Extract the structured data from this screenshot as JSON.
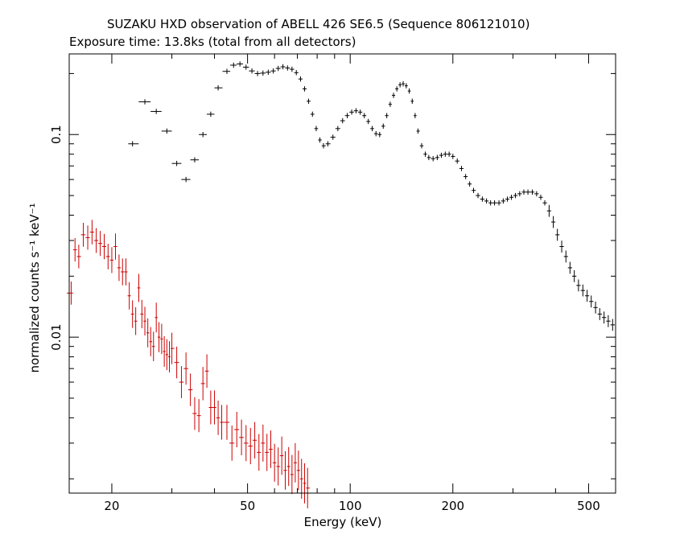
{
  "title": "SUZAKU HXD observation of ABELL 426 SE6.5 (Sequence 806121010)",
  "subtitle": "Exposure time: 13.8ks (total from all detectors)",
  "chart_data": {
    "type": "scatter",
    "title": "SUZAKU HXD observation of ABELL 426 SE6.5 (Sequence 806121010)",
    "subtitle": "Exposure time: 13.8ks (total from all detectors)",
    "xlabel": "Energy (keV)",
    "ylabel": "normalized counts s⁻¹ keV⁻¹",
    "xscale": "log",
    "yscale": "log",
    "xlim": [
      15,
      600
    ],
    "ylim": [
      0.0017,
      0.25
    ],
    "x_ticks": [
      20,
      50,
      100,
      200,
      500
    ],
    "x_tick_labels": [
      "20",
      "50",
      "100",
      "200",
      "500"
    ],
    "y_ticks": [
      0.01,
      0.1
    ],
    "y_tick_labels": [
      "0.01",
      "0.1"
    ],
    "legend": "none",
    "series": [
      {
        "color": "#000000",
        "points": [
          [
            23.0,
            0.09
          ],
          [
            25.0,
            0.145
          ],
          [
            27.0,
            0.13
          ],
          [
            29.0,
            0.104
          ],
          [
            31.0,
            0.072
          ],
          [
            33.0,
            0.06
          ],
          [
            35.0,
            0.075
          ],
          [
            37.0,
            0.1
          ],
          [
            39.0,
            0.126
          ],
          [
            41.0,
            0.17
          ],
          [
            43.5,
            0.205
          ],
          [
            45.5,
            0.22
          ],
          [
            47.5,
            0.223
          ],
          [
            49.5,
            0.215
          ],
          [
            51.5,
            0.206
          ],
          [
            53.5,
            0.2
          ],
          [
            55.5,
            0.201
          ],
          [
            57.5,
            0.203
          ],
          [
            59.5,
            0.206
          ],
          [
            61.5,
            0.212
          ],
          [
            63.5,
            0.216
          ],
          [
            65.5,
            0.213
          ],
          [
            67.5,
            0.21
          ],
          [
            69.5,
            0.202
          ],
          [
            71.5,
            0.188
          ],
          [
            73.5,
            0.168
          ],
          [
            75.5,
            0.146
          ],
          [
            77.5,
            0.126
          ],
          [
            79.5,
            0.107
          ],
          [
            81.5,
            0.094
          ],
          [
            83.5,
            0.088
          ],
          [
            86.0,
            0.09
          ],
          [
            89.0,
            0.097
          ],
          [
            92.0,
            0.107
          ],
          [
            95.0,
            0.117
          ],
          [
            98.0,
            0.124
          ],
          [
            101.0,
            0.129
          ],
          [
            104.0,
            0.131
          ],
          [
            107.0,
            0.129
          ],
          [
            110.0,
            0.124
          ],
          [
            113.0,
            0.116
          ],
          [
            116.0,
            0.107
          ],
          [
            119.0,
            0.101
          ],
          [
            122.0,
            0.1
          ],
          [
            125.0,
            0.11
          ],
          [
            128.0,
            0.124
          ],
          [
            131.0,
            0.141
          ],
          [
            134.0,
            0.156
          ],
          [
            137.0,
            0.168
          ],
          [
            140.0,
            0.176
          ],
          [
            143.0,
            0.178
          ],
          [
            146.0,
            0.174
          ],
          [
            149.0,
            0.164
          ],
          [
            152.0,
            0.146
          ],
          [
            155.0,
            0.124
          ],
          [
            158.0,
            0.104
          ],
          [
            162.0,
            0.088
          ],
          [
            166.0,
            0.08
          ],
          [
            170.0,
            0.077
          ],
          [
            175.0,
            0.076
          ],
          [
            180.0,
            0.077
          ],
          [
            185.0,
            0.079
          ],
          [
            190.0,
            0.08
          ],
          [
            195.0,
            0.08
          ],
          [
            200.0,
            0.078
          ],
          [
            206.0,
            0.074
          ],
          [
            212.0,
            0.068
          ],
          [
            218.0,
            0.062
          ],
          [
            224.0,
            0.057
          ],
          [
            230.0,
            0.053
          ],
          [
            237.0,
            0.05
          ],
          [
            244.0,
            0.048
          ],
          [
            251.0,
            0.047
          ],
          [
            258.0,
            0.046
          ],
          [
            265.0,
            0.046
          ],
          [
            273.0,
            0.046
          ],
          [
            281.0,
            0.047
          ],
          [
            289.0,
            0.048
          ],
          [
            297.0,
            0.049
          ],
          [
            305.0,
            0.05
          ],
          [
            314.0,
            0.051
          ],
          [
            323.0,
            0.052
          ],
          [
            332.0,
            0.052
          ],
          [
            342.0,
            0.052
          ],
          [
            352.0,
            0.051
          ],
          [
            362.0,
            0.049
          ],
          [
            372.0,
            0.046
          ],
          [
            383.0,
            0.042
          ],
          [
            394.0,
            0.037
          ],
          [
            405.0,
            0.032
          ],
          [
            417.0,
            0.028
          ],
          [
            429.0,
            0.025
          ],
          [
            441.0,
            0.022
          ],
          [
            454.0,
            0.02
          ],
          [
            467.0,
            0.018
          ],
          [
            481.0,
            0.017
          ],
          [
            495.0,
            0.016
          ],
          [
            509.0,
            0.015
          ],
          [
            524.0,
            0.014
          ],
          [
            539.0,
            0.013
          ],
          [
            555.0,
            0.0125
          ],
          [
            571.0,
            0.012
          ],
          [
            588.0,
            0.0115
          ]
        ]
      },
      {
        "color": "#cc0000",
        "points": [
          [
            15.2,
            0.0165
          ],
          [
            15.6,
            0.027
          ],
          [
            16.0,
            0.025
          ],
          [
            16.5,
            0.032
          ],
          [
            17.0,
            0.031
          ],
          [
            17.5,
            0.033
          ],
          [
            18.0,
            0.03
          ],
          [
            18.5,
            0.029
          ],
          [
            19.0,
            0.028
          ],
          [
            19.5,
            0.025
          ],
          [
            20.0,
            0.024
          ],
          [
            20.5,
            0.028
          ],
          [
            21.0,
            0.022
          ],
          [
            21.5,
            0.021
          ],
          [
            22.0,
            0.021
          ],
          [
            22.5,
            0.016
          ],
          [
            23.0,
            0.013
          ],
          [
            23.5,
            0.012
          ],
          [
            24.0,
            0.0175
          ],
          [
            24.5,
            0.013
          ],
          [
            25.0,
            0.012
          ],
          [
            25.5,
            0.0105
          ],
          [
            26.0,
            0.0095
          ],
          [
            26.5,
            0.009
          ],
          [
            27.0,
            0.0125
          ],
          [
            27.5,
            0.01
          ],
          [
            28.0,
            0.0098
          ],
          [
            28.5,
            0.0085
          ],
          [
            29.0,
            0.0082
          ],
          [
            29.5,
            0.008
          ],
          [
            30.0,
            0.0088
          ],
          [
            31.0,
            0.0075
          ],
          [
            32.0,
            0.006
          ],
          [
            33.0,
            0.007
          ],
          [
            34.0,
            0.0055
          ],
          [
            35.0,
            0.0042
          ],
          [
            36.0,
            0.0041
          ],
          [
            37.0,
            0.0059
          ],
          [
            38.0,
            0.0068
          ],
          [
            39.0,
            0.0045
          ],
          [
            40.0,
            0.0045
          ],
          [
            41.0,
            0.004
          ],
          [
            42.0,
            0.0038
          ],
          [
            43.5,
            0.0038
          ],
          [
            45.0,
            0.003
          ],
          [
            46.5,
            0.0035
          ],
          [
            48.0,
            0.0032
          ],
          [
            49.5,
            0.003
          ],
          [
            51.0,
            0.0029
          ],
          [
            52.5,
            0.0031
          ],
          [
            54.0,
            0.0027
          ],
          [
            55.5,
            0.003
          ],
          [
            57.0,
            0.0027
          ],
          [
            58.5,
            0.0028
          ],
          [
            60.0,
            0.0024
          ],
          [
            61.5,
            0.0023
          ],
          [
            63.0,
            0.0026
          ],
          [
            64.5,
            0.0022
          ],
          [
            66.0,
            0.0023
          ],
          [
            67.5,
            0.0021
          ],
          [
            69.0,
            0.0024
          ],
          [
            70.5,
            0.0022
          ],
          [
            72.0,
            0.002
          ],
          [
            73.5,
            0.0019
          ],
          [
            75.0,
            0.0018
          ]
        ]
      }
    ]
  }
}
